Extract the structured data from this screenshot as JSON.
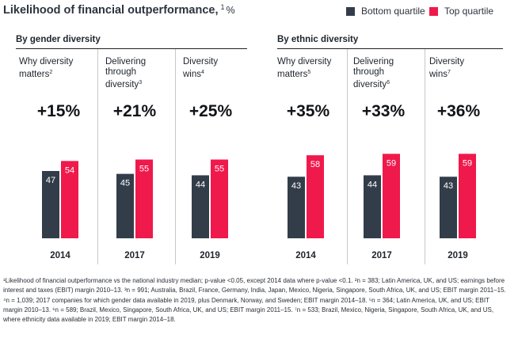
{
  "header": {
    "title": "Likelihood of financial outperformance,",
    "title_sup": "1",
    "title_unit": "%"
  },
  "legend": {
    "bottom_label": "Bottom quartile",
    "top_label": "Top quartile"
  },
  "colors": {
    "bottom": "#333d4a",
    "top": "#f0194b",
    "text": "#2d3440"
  },
  "groups": [
    {
      "title": "By gender diversity"
    },
    {
      "title": "By ethnic diversity"
    }
  ],
  "panels": [
    {
      "label": "Why diversity matters",
      "sup": "2",
      "delta": "+15%"
    },
    {
      "label": "Delivering through diversity",
      "sup": "3",
      "delta": "+21%"
    },
    {
      "label": "Diversity wins",
      "sup": "4",
      "delta": "+25%"
    },
    {
      "label": "Why diversity matters",
      "sup": "5",
      "delta": "+35%"
    },
    {
      "label": "Delivering through diversity",
      "sup": "6",
      "delta": "+33%"
    },
    {
      "label": "Diversity wins",
      "sup": "7",
      "delta": "+36%"
    }
  ],
  "chart_data": {
    "type": "bar",
    "categories": [
      "2014",
      "2017",
      "2019",
      "2014",
      "2017",
      "2019"
    ],
    "series": [
      {
        "name": "Bottom quartile",
        "values": [
          47,
          45,
          44,
          43,
          44,
          43
        ]
      },
      {
        "name": "Top quartile",
        "values": [
          54,
          55,
          55,
          58,
          59,
          59
        ]
      }
    ],
    "data_labels": true
  },
  "footnote": "¹Likelihood of financial outperformance vs the national industry median; p-value <0.05, except 2014 data where p-value <0.1. ²n = 383; Latin America, UK, and US; earnings before interest and taxes (EBIT) margin 2010–13. ³n = 991; Australia, Brazil, France, Germany, India, Japan, Mexico, Nigeria, Singapore, South Africa, UK, and US; EBIT margin 2011–15. ⁴n = 1,039; 2017 companies for which gender data available in 2019, plus Denmark, Norway, and Sweden; EBIT margin 2014–18. ⁵n = 364; Latin America, UK, and US; EBIT margin 2010–13. ⁶n = 589; Brazil, Mexico, Singapore, South Africa, UK, and US; EBIT margin 2011–15. ⁷n = 533; Brazil, Mexico, Nigeria, Singapore, South Africa, UK, and US, where ethnicity data available in 2019; EBIT margin 2014–18."
}
